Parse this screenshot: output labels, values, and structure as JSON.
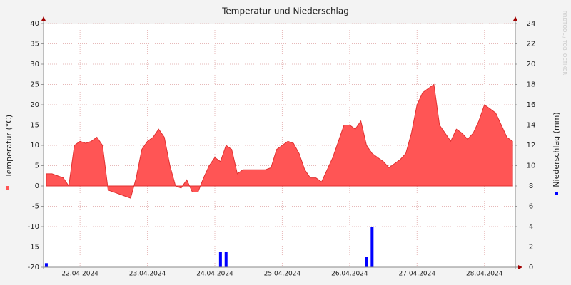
{
  "chart_data": {
    "type": "area",
    "title": "Temperatur und Niederschlag",
    "watermark": "RRDTOOL / TOBI OETIKER",
    "categories": [
      null,
      null,
      null,
      null,
      null,
      null,
      "22.04.2024",
      null,
      null,
      null,
      null,
      null,
      null,
      null,
      null,
      null,
      null,
      null,
      "23.04.2024",
      null,
      null,
      null,
      null,
      null,
      null,
      null,
      null,
      null,
      null,
      null,
      "24.04.2024",
      null,
      null,
      null,
      null,
      null,
      null,
      null,
      null,
      null,
      null,
      null,
      "25.04.2024",
      null,
      null,
      null,
      null,
      null,
      null,
      null,
      null,
      null,
      null,
      null,
      "26.04.2024",
      null,
      null,
      null,
      null,
      null,
      null,
      null,
      null,
      null,
      null,
      null,
      "27.04.2024",
      null,
      null,
      null,
      null,
      null,
      null,
      null,
      null,
      null,
      null,
      null,
      "28.04.2024",
      null,
      null,
      null,
      null,
      null
    ],
    "series": [
      {
        "name": "Temperatur (°C)",
        "color": "#ff5555",
        "values": [
          3,
          3,
          2.5,
          2,
          0,
          10,
          11,
          10.5,
          11,
          12,
          10,
          -1,
          -1.5,
          -2,
          -2.5,
          -3,
          2,
          9,
          11,
          12,
          14,
          12,
          5,
          0,
          -0.5,
          1.5,
          -1.5,
          -1.5,
          2,
          5,
          7,
          6,
          10,
          9,
          3,
          4,
          4,
          4,
          4,
          4,
          4.5,
          9,
          10,
          11,
          10.5,
          8,
          4,
          2,
          2,
          1,
          4,
          7,
          11,
          15,
          15,
          14,
          16,
          10,
          8,
          7,
          6,
          4.5,
          5.5,
          6.5,
          8,
          13,
          20,
          23,
          24,
          25,
          15,
          13,
          11,
          14,
          13,
          11.5,
          13,
          16,
          20,
          19,
          18,
          15,
          12,
          11
        ]
      },
      {
        "name": "Niederschlag (mm)",
        "color": "#0000ff",
        "axis": "y2",
        "values": [
          0.4,
          0,
          0,
          0,
          0,
          0,
          0,
          0,
          0,
          0,
          0,
          0,
          0,
          0,
          0,
          0,
          0,
          0,
          0,
          0,
          0,
          0,
          0,
          0,
          0,
          0,
          0,
          0,
          0,
          0,
          0,
          1.5,
          1.5,
          0,
          0,
          0,
          0,
          0,
          0,
          0,
          0,
          0,
          0,
          0,
          0,
          0,
          0,
          0,
          0,
          0,
          0,
          0,
          0,
          0,
          0,
          0,
          0,
          1,
          4,
          0,
          0,
          0,
          0,
          0,
          0,
          0,
          0,
          0,
          0,
          0,
          0,
          0,
          0,
          0,
          0,
          0,
          0,
          0,
          0,
          0,
          0,
          0,
          0,
          0
        ]
      }
    ],
    "ylim": [
      -20,
      40
    ],
    "yticks": [
      -20,
      -15,
      -10,
      -5,
      0,
      5,
      10,
      15,
      20,
      25,
      30,
      35,
      40
    ],
    "y2lim": [
      0,
      24
    ],
    "y2ticks": [
      0,
      2,
      4,
      6,
      8,
      10,
      12,
      14,
      16,
      18,
      20,
      22,
      24
    ],
    "grid": true
  }
}
